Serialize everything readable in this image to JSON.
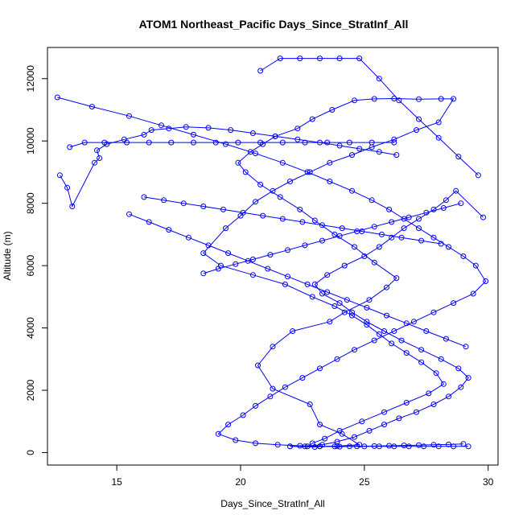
{
  "chart_data": {
    "type": "line",
    "title": "ATOM1 Northeast_Pacific Days_Since_StratInf_All",
    "xlabel": "Days_Since_StratInf_All",
    "ylabel": "Altitude (m)",
    "xlim": [
      12.2,
      30.4
    ],
    "ylim": [
      -400,
      13000
    ],
    "x_ticks": [
      15,
      20,
      25,
      30
    ],
    "y_ticks": [
      0,
      2000,
      4000,
      6000,
      8000,
      10000,
      12000
    ],
    "grid": false,
    "legend": "none",
    "marker": "open-circle",
    "color": "#0000ff",
    "series": [
      {
        "x": [
          22.0,
          23.0,
          23.9,
          24.8,
          24.1,
          23.2,
          22.8,
          21.3,
          20.7,
          21.3,
          22.1,
          23.6,
          24.2,
          25.2,
          25.9,
          26.3,
          25.4,
          24.6,
          23.8,
          23.0,
          22.4,
          21.6,
          20.8,
          20.2,
          19.9,
          20.4,
          20.9,
          21.4,
          22.3,
          22.9,
          23.7,
          24.6,
          25.4,
          26.2,
          27.2,
          28.1,
          28.6,
          28.0,
          27.1,
          26.2,
          25.3,
          24.5,
          23.6,
          22.8,
          22.0,
          21.3,
          20.6,
          20.0,
          19.4,
          18.5,
          19.2,
          20.5,
          21.8,
          22.9,
          23.8,
          24.5,
          25.1,
          25.6,
          26.1,
          26.7,
          27.3,
          27.9,
          28.2,
          27.6,
          26.7,
          25.8,
          24.9,
          24.0,
          23.4,
          22.9,
          22.7,
          23.3,
          23.9,
          24.6,
          25.2,
          25.8,
          26.4,
          27.1,
          27.8,
          28.4,
          28.9,
          29.2,
          28.8,
          28.1,
          27.3,
          26.5,
          25.8,
          25.1,
          24.5,
          24.0,
          23.3,
          23.0,
          23.5,
          24.2,
          25.0,
          25.6,
          26.1,
          26.6,
          27.2,
          27.8,
          28.3,
          28.7,
          29.8
        ],
        "y": [
          200,
          180,
          210,
          250,
          600,
          900,
          1550,
          2050,
          2800,
          3400,
          3900,
          4200,
          4500,
          4900,
          5300,
          5600,
          6100,
          6600,
          7000,
          7450,
          7800,
          8200,
          8600,
          9000,
          9300,
          9650,
          9900,
          10150,
          10400,
          10700,
          11000,
          11300,
          11350,
          11360,
          11340,
          11350,
          11350,
          10600,
          10350,
          10050,
          9800,
          9550,
          9300,
          9000,
          8700,
          8400,
          8050,
          7600,
          7200,
          6400,
          6000,
          5700,
          5400,
          5000,
          4700,
          4400,
          4100,
          3800,
          3500,
          3200,
          2900,
          2550,
          2200,
          1900,
          1600,
          1300,
          1000,
          700,
          450,
          300,
          200,
          250,
          350,
          500,
          700,
          900,
          1100,
          1300,
          1550,
          1800,
          2100,
          2400,
          2700,
          3000,
          3300,
          3600,
          3900,
          4200,
          4500,
          4800,
          5100,
          5400,
          5700,
          6000,
          6300,
          6600,
          6900,
          7200,
          7500,
          7800,
          8100,
          8400,
          7550
        ]
      },
      {
        "x": [
          12.6,
          14.0,
          15.5,
          16.8,
          18.1,
          19.4,
          20.6,
          21.7,
          22.7,
          23.6,
          24.5,
          25.3,
          26.0,
          26.6,
          27.2,
          27.8,
          28.4,
          29.0,
          29.5,
          29.9,
          29.4,
          28.6,
          27.8,
          27.0,
          26.2,
          25.4,
          24.6,
          23.9,
          23.2,
          22.5,
          21.8,
          21.2,
          20.6,
          20.1,
          19.5,
          19.1,
          19.8,
          20.6,
          21.5,
          22.4,
          23.2,
          24.0,
          24.7,
          25.4,
          26.0,
          26.6,
          27.2,
          27.8,
          28.4,
          29.0
        ],
        "y": [
          11400,
          11100,
          10800,
          10500,
          10200,
          9900,
          9600,
          9300,
          9000,
          8700,
          8400,
          8100,
          7800,
          7500,
          7200,
          6900,
          6600,
          6300,
          6000,
          5500,
          5100,
          4800,
          4500,
          4200,
          3900,
          3600,
          3300,
          3000,
          2700,
          2400,
          2100,
          1800,
          1500,
          1200,
          900,
          600,
          400,
          300,
          250,
          220,
          200,
          190,
          200,
          210,
          220,
          230,
          240,
          250,
          260,
          280
        ]
      },
      {
        "x": [
          12.7,
          13.0,
          13.2,
          14.1,
          14.3,
          14.2,
          14.6,
          15.3,
          16.1,
          16.4,
          17.1,
          17.8,
          18.7,
          19.6,
          20.5,
          21.4,
          22.3,
          23.2,
          24.0,
          24.8,
          25.6,
          26.3
        ],
        "y": [
          8900,
          8500,
          7900,
          9300,
          9450,
          9700,
          9900,
          10050,
          10200,
          10350,
          10400,
          10450,
          10420,
          10350,
          10250,
          10150,
          10050,
          9950,
          9850,
          9750,
          9650,
          9550
        ]
      },
      {
        "x": [
          13.1,
          13.7,
          14.5,
          15.4,
          16.3,
          17.2,
          18.1,
          19.0,
          19.9,
          20.8,
          21.7,
          22.6,
          23.5,
          24.4,
          25.3,
          26.2
        ],
        "y": [
          9800,
          9950,
          9950,
          9950,
          9950,
          9950,
          9950,
          9950,
          9950,
          9950,
          9950,
          9950,
          9950,
          9950,
          9950,
          9950
        ]
      },
      {
        "x": [
          15.5,
          16.3,
          17.1,
          17.9,
          18.7,
          19.5,
          20.3,
          21.1,
          21.9,
          22.7,
          23.5,
          24.3,
          25.1,
          25.9,
          26.7,
          27.5,
          28.3,
          29.1
        ],
        "y": [
          7650,
          7400,
          7150,
          6900,
          6650,
          6400,
          6150,
          5900,
          5650,
          5400,
          5150,
          4900,
          4650,
          4400,
          4150,
          3900,
          3650,
          3400
        ]
      },
      {
        "x": [
          16.1,
          16.9,
          17.7,
          18.5,
          19.3,
          20.1,
          20.9,
          21.7,
          22.5,
          23.3,
          24.1,
          24.9,
          25.7,
          26.5,
          27.3,
          28.1
        ],
        "y": [
          8200,
          8100,
          8000,
          7900,
          7800,
          7700,
          7600,
          7500,
          7400,
          7300,
          7200,
          7100,
          7000,
          6900,
          6800,
          6700
        ]
      },
      {
        "x": [
          20.8,
          21.6,
          22.4,
          23.2,
          24.0,
          24.8,
          25.6,
          26.4,
          27.2,
          28.0,
          28.8,
          29.6
        ],
        "y": [
          12250,
          12650,
          12650,
          12650,
          12650,
          12650,
          12000,
          11300,
          10700,
          10100,
          9500,
          8900
        ]
      },
      {
        "x": [
          18.5,
          19.1,
          19.8,
          20.5,
          21.2,
          21.9,
          22.6,
          23.3,
          24.0,
          24.7,
          25.4,
          26.1,
          26.8,
          27.5,
          28.2,
          28.9
        ],
        "y": [
          5750,
          5900,
          6050,
          6200,
          6350,
          6500,
          6650,
          6800,
          6950,
          7100,
          7250,
          7400,
          7550,
          7700,
          7850,
          8000
        ]
      },
      {
        "x": [
          22.0,
          22.6,
          23.2,
          23.8,
          24.4,
          25.0,
          25.6,
          26.2,
          26.8,
          27.4,
          28.0,
          28.6,
          29.2
        ],
        "y": [
          200,
          200,
          200,
          200,
          200,
          200,
          200,
          200,
          200,
          200,
          200,
          200,
          200
        ]
      }
    ]
  }
}
